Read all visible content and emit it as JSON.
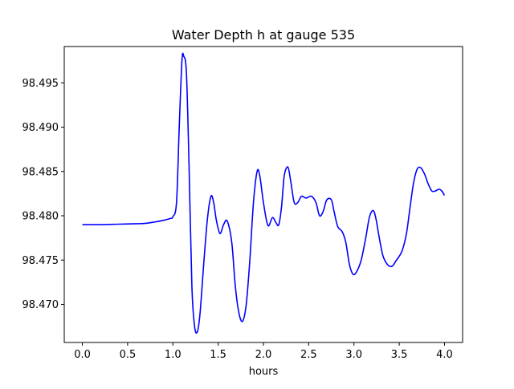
{
  "chart_data": {
    "type": "line",
    "title": "Water Depth h at gauge 535",
    "xlabel": "hours",
    "ylabel": "",
    "xlim": [
      -0.2,
      4.2
    ],
    "ylim": [
      98.4657,
      98.4991
    ],
    "x_ticks": [
      0.0,
      0.5,
      1.0,
      1.5,
      2.0,
      2.5,
      3.0,
      3.5,
      4.0
    ],
    "x_tick_labels": [
      "0.0",
      "0.5",
      "1.0",
      "1.5",
      "2.0",
      "2.5",
      "3.0",
      "3.5",
      "4.0"
    ],
    "y_ticks": [
      98.47,
      98.475,
      98.48,
      98.485,
      98.49,
      98.495
    ],
    "y_tick_labels": [
      "98.470",
      "98.475",
      "98.480",
      "98.485",
      "98.490",
      "98.495"
    ],
    "grid": false,
    "series": [
      {
        "name": "h",
        "color": "#0000ff",
        "points": [
          [
            0.0,
            98.479
          ],
          [
            0.2,
            98.479
          ],
          [
            0.4,
            98.47905
          ],
          [
            0.6,
            98.4791
          ],
          [
            0.7,
            98.47915
          ],
          [
            0.8,
            98.4793
          ],
          [
            0.9,
            98.4795
          ],
          [
            0.97,
            98.4797
          ],
          [
            1.0,
            98.4799
          ],
          [
            1.04,
            98.4815
          ],
          [
            1.07,
            98.49
          ],
          [
            1.1,
            98.4975
          ],
          [
            1.12,
            98.498
          ],
          [
            1.15,
            98.496
          ],
          [
            1.18,
            98.485
          ],
          [
            1.21,
            98.472
          ],
          [
            1.24,
            98.4675
          ],
          [
            1.27,
            98.4669
          ],
          [
            1.3,
            98.469
          ],
          [
            1.34,
            98.4745
          ],
          [
            1.38,
            98.4795
          ],
          [
            1.42,
            98.4822
          ],
          [
            1.45,
            98.4815
          ],
          [
            1.48,
            98.4795
          ],
          [
            1.52,
            98.478
          ],
          [
            1.56,
            98.479
          ],
          [
            1.6,
            98.4794
          ],
          [
            1.65,
            98.477
          ],
          [
            1.69,
            98.472
          ],
          [
            1.73,
            98.469
          ],
          [
            1.77,
            98.4681
          ],
          [
            1.81,
            98.47
          ],
          [
            1.85,
            98.475
          ],
          [
            1.89,
            98.4815
          ],
          [
            1.93,
            98.485
          ],
          [
            1.96,
            98.4845
          ],
          [
            2.0,
            98.4815
          ],
          [
            2.05,
            98.4789
          ],
          [
            2.1,
            98.4798
          ],
          [
            2.14,
            98.4792
          ],
          [
            2.17,
            98.479
          ],
          [
            2.2,
            98.481
          ],
          [
            2.23,
            98.4845
          ],
          [
            2.27,
            98.4855
          ],
          [
            2.3,
            98.484
          ],
          [
            2.34,
            98.4815
          ],
          [
            2.38,
            98.4815
          ],
          [
            2.42,
            98.4822
          ],
          [
            2.47,
            98.482
          ],
          [
            2.53,
            98.4822
          ],
          [
            2.58,
            98.4815
          ],
          [
            2.62,
            98.48
          ],
          [
            2.66,
            98.4805
          ],
          [
            2.7,
            98.4818
          ],
          [
            2.75,
            98.4818
          ],
          [
            2.78,
            98.4805
          ],
          [
            2.82,
            98.4788
          ],
          [
            2.87,
            98.4782
          ],
          [
            2.91,
            98.477
          ],
          [
            2.95,
            98.4745
          ],
          [
            2.99,
            98.4734
          ],
          [
            3.03,
            98.4737
          ],
          [
            3.08,
            98.475
          ],
          [
            3.13,
            98.4775
          ],
          [
            3.17,
            98.4798
          ],
          [
            3.21,
            98.4806
          ],
          [
            3.24,
            98.4798
          ],
          [
            3.28,
            98.4775
          ],
          [
            3.32,
            98.4755
          ],
          [
            3.37,
            98.4745
          ],
          [
            3.42,
            98.4743
          ],
          [
            3.47,
            98.475
          ],
          [
            3.53,
            98.476
          ],
          [
            3.58,
            98.478
          ],
          [
            3.62,
            98.481
          ],
          [
            3.66,
            98.4838
          ],
          [
            3.7,
            98.4853
          ],
          [
            3.74,
            98.4854
          ],
          [
            3.78,
            98.4847
          ],
          [
            3.82,
            98.4836
          ],
          [
            3.86,
            98.4828
          ],
          [
            3.9,
            98.4828
          ],
          [
            3.94,
            98.483
          ],
          [
            3.97,
            98.4828
          ],
          [
            4.0,
            98.4823
          ]
        ]
      }
    ]
  }
}
